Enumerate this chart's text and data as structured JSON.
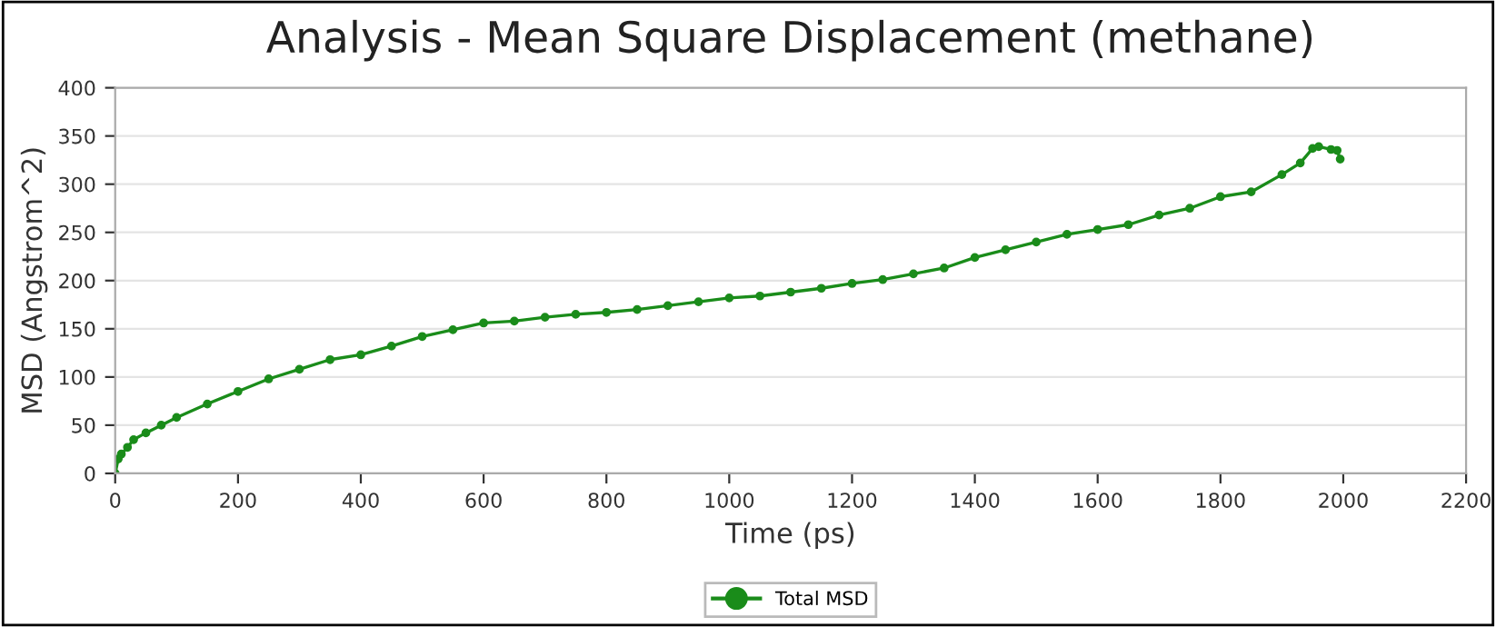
{
  "chart_data": {
    "type": "line",
    "title": "Analysis - Mean Square Displacement (methane)",
    "xlabel": "Time (ps)",
    "ylabel": "MSD (Angstrom^2)",
    "x": [
      0,
      5,
      10,
      20,
      30,
      50,
      75,
      100,
      150,
      200,
      250,
      300,
      350,
      400,
      450,
      500,
      550,
      600,
      650,
      700,
      750,
      800,
      850,
      900,
      950,
      1000,
      1050,
      1100,
      1150,
      1200,
      1250,
      1300,
      1350,
      1400,
      1450,
      1500,
      1550,
      1600,
      1650,
      1700,
      1750,
      1800,
      1850,
      1900,
      1930,
      1950,
      1960,
      1980,
      1990,
      1995
    ],
    "series": [
      {
        "name": "Total MSD",
        "color": "#1a8c1a",
        "values": [
          0,
          15,
          20,
          27,
          35,
          42,
          50,
          58,
          72,
          85,
          98,
          108,
          118,
          123,
          132,
          142,
          149,
          156,
          158,
          162,
          165,
          167,
          170,
          174,
          178,
          182,
          184,
          188,
          192,
          197,
          201,
          207,
          213,
          224,
          232,
          240,
          248,
          253,
          258,
          268,
          275,
          287,
          292,
          310,
          322,
          337,
          339,
          336,
          335,
          326
        ]
      }
    ],
    "xlim": [
      0,
      2200
    ],
    "xticks": [
      0,
      200,
      400,
      600,
      800,
      1000,
      1200,
      1400,
      1600,
      1800,
      2000,
      2200
    ],
    "ylim": [
      0,
      400
    ],
    "yticks": [
      0,
      50,
      100,
      150,
      200,
      250,
      300,
      350,
      400
    ],
    "grid": "y",
    "legend": "bottom",
    "marker": "circle",
    "line_style": "solid"
  }
}
